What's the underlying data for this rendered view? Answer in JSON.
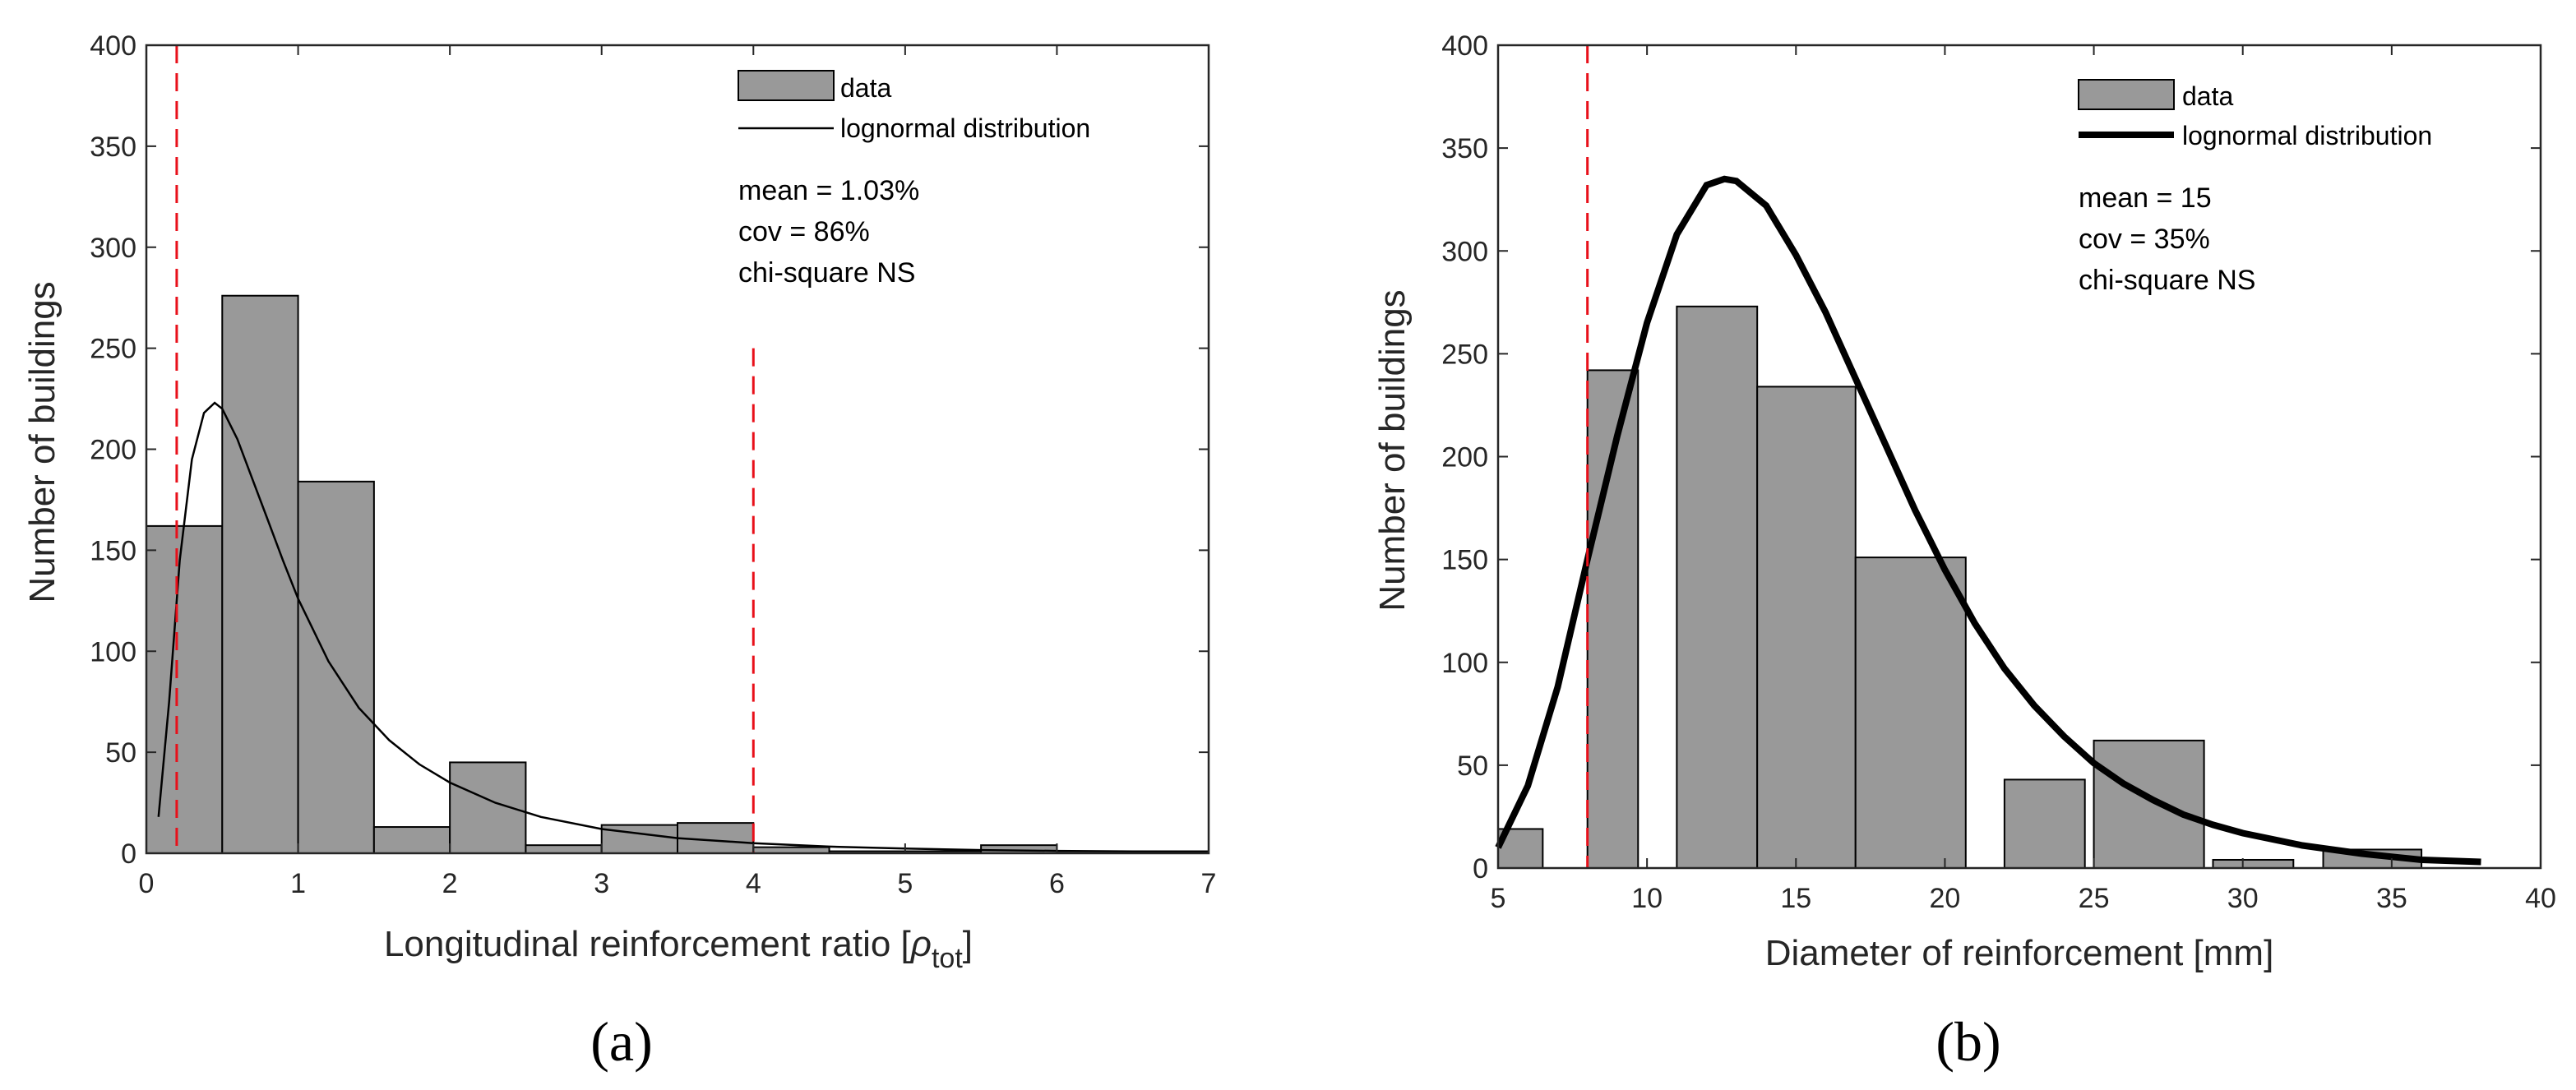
{
  "chart_data": [
    {
      "type": "bar",
      "panel": "a",
      "caption": "(a)",
      "xlabel": "Longitudinal reinforcement ratio [ρtot]",
      "xlabel_main": "Longitudinal reinforcement ratio [",
      "xlabel_symbol": "ρ",
      "xlabel_sub": "tot",
      "xlabel_end": "]",
      "ylabel": "Number of buildings",
      "xlim": [
        0,
        7
      ],
      "ylim": [
        0,
        400
      ],
      "xticks": [
        0,
        1,
        2,
        3,
        4,
        5,
        6,
        7
      ],
      "yticks": [
        0,
        50,
        100,
        150,
        200,
        250,
        300,
        350,
        400
      ],
      "bins": [
        {
          "x0": 0.0,
          "x1": 0.5,
          "value": 162
        },
        {
          "x0": 0.5,
          "x1": 1.0,
          "value": 276
        },
        {
          "x0": 1.0,
          "x1": 1.5,
          "value": 184
        },
        {
          "x0": 1.5,
          "x1": 2.0,
          "value": 13
        },
        {
          "x0": 2.0,
          "x1": 2.5,
          "value": 45
        },
        {
          "x0": 2.5,
          "x1": 3.0,
          "value": 4
        },
        {
          "x0": 3.0,
          "x1": 3.5,
          "value": 14
        },
        {
          "x0": 3.5,
          "x1": 4.0,
          "value": 15
        },
        {
          "x0": 4.0,
          "x1": 4.5,
          "value": 3
        },
        {
          "x0": 4.5,
          "x1": 5.0,
          "value": 1
        },
        {
          "x0": 5.0,
          "x1": 5.5,
          "value": 1
        },
        {
          "x0": 5.5,
          "x1": 6.0,
          "value": 4
        },
        {
          "x0": 6.0,
          "x1": 6.5,
          "value": 1
        },
        {
          "x0": 6.5,
          "x1": 7.0,
          "value": 1
        }
      ],
      "curve": {
        "name": "lognormal distribution",
        "x": [
          0.08,
          0.15,
          0.22,
          0.3,
          0.38,
          0.45,
          0.5,
          0.6,
          0.7,
          0.8,
          0.9,
          1.0,
          1.2,
          1.4,
          1.6,
          1.8,
          2.0,
          2.3,
          2.6,
          3.0,
          3.5,
          4.0,
          4.5,
          5.0,
          5.5,
          6.0,
          6.5,
          7.0
        ],
        "y": [
          18,
          75,
          145,
          195,
          218,
          223,
          220,
          205,
          185,
          165,
          145,
          126,
          95,
          72,
          56,
          44,
          35,
          25,
          18,
          12,
          7.5,
          5,
          3.3,
          2.3,
          1.6,
          1.2,
          0.9,
          0.7
        ]
      },
      "vlines": [
        {
          "x": 0.2,
          "y0": 0,
          "y1": 400
        },
        {
          "x": 4.0,
          "y0": 0,
          "y1": 250
        }
      ],
      "legend": {
        "data_label": "data",
        "curve_label": "lognormal distribution"
      },
      "stats": [
        "mean = 1.03%",
        "cov = 86%",
        "chi-square NS"
      ],
      "colors": {
        "bar": "#999999",
        "curve": "#000000",
        "vline": "#e8101a"
      }
    },
    {
      "type": "bar",
      "panel": "b",
      "caption": "(b)",
      "xlabel": "Diameter of reinforcement [mm]",
      "ylabel": "Number of buildings",
      "xlim": [
        5,
        40
      ],
      "ylim": [
        0,
        400
      ],
      "xticks": [
        5,
        10,
        15,
        20,
        25,
        30,
        35,
        40
      ],
      "yticks": [
        0,
        50,
        100,
        150,
        200,
        250,
        300,
        350,
        400
      ],
      "bins": [
        {
          "x0": 5.0,
          "x1": 6.5,
          "value": 19
        },
        {
          "x0": 8.0,
          "x1": 9.7,
          "value": 242
        },
        {
          "x0": 11.0,
          "x1": 13.7,
          "value": 273
        },
        {
          "x0": 13.7,
          "x1": 17.0,
          "value": 234
        },
        {
          "x0": 17.0,
          "x1": 20.7,
          "value": 151
        },
        {
          "x0": 22.0,
          "x1": 24.7,
          "value": 43
        },
        {
          "x0": 25.0,
          "x1": 28.7,
          "value": 62
        },
        {
          "x0": 29.0,
          "x1": 31.7,
          "value": 4
        },
        {
          "x0": 32.7,
          "x1": 36.0,
          "value": 9
        }
      ],
      "curve": {
        "name": "lognormal distribution",
        "x": [
          5.0,
          6.0,
          7.0,
          8.0,
          9.0,
          10.0,
          11.0,
          12.0,
          12.6,
          13.0,
          14.0,
          15.0,
          16.0,
          17.0,
          18.0,
          19.0,
          20.0,
          21.0,
          22.0,
          23.0,
          24.0,
          25.0,
          26.0,
          27.0,
          28.0,
          29.0,
          30.0,
          32.0,
          34.0,
          36.0,
          38.0
        ],
        "y": [
          10,
          40,
          88,
          150,
          210,
          265,
          308,
          332,
          335,
          334,
          322,
          298,
          270,
          238,
          206,
          174,
          145,
          119,
          97,
          79,
          64,
          51,
          41,
          33,
          26,
          21,
          17,
          11,
          7,
          4,
          3
        ]
      },
      "vlines": [
        {
          "x": 8.0,
          "y0": 0,
          "y1": 400
        }
      ],
      "legend": {
        "data_label": "data",
        "curve_label": "lognormal distribution"
      },
      "stats": [
        "mean = 15",
        "cov = 35%",
        "chi-square NS"
      ],
      "colors": {
        "bar": "#999999",
        "curve": "#000000",
        "vline": "#e8101a"
      }
    }
  ]
}
